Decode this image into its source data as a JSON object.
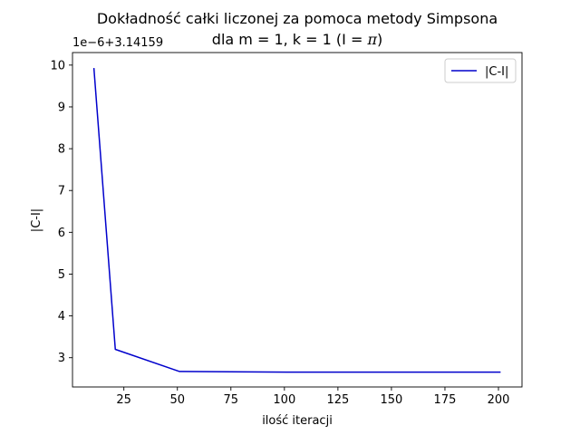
{
  "chart_data": {
    "type": "line",
    "title_line1": "Dokładność całki liczonej za pomoca metody Simpsona",
    "title_line2_prefix": "dla m = 1, k = 1 (I = ",
    "title_line2_symbol": "π",
    "title_line2_suffix": ")",
    "xlabel": "ilość iteracji",
    "ylabel": "|C-I|",
    "y_offset_text": "1e−6+3.14159",
    "y_offset_base": 3.14159,
    "y_offset_scale": 1e-06,
    "xlim": [
      1,
      211
    ],
    "ylim": [
      2.3,
      10.3
    ],
    "xticks": [
      25,
      50,
      75,
      100,
      125,
      150,
      175,
      200
    ],
    "xtick_labels": [
      "25",
      "50",
      "75",
      "100",
      "125",
      "150",
      "175",
      "200"
    ],
    "yticks": [
      3,
      4,
      5,
      6,
      7,
      8,
      9,
      10
    ],
    "ytick_labels": [
      "3",
      "4",
      "5",
      "6",
      "7",
      "8",
      "9",
      "10"
    ],
    "grid": false,
    "legend_position": "top-right",
    "series": [
      {
        "name": "|C-I|",
        "color": "#0000cc",
        "x": [
          11,
          21,
          51,
          101,
          201
        ],
        "y": [
          9.93,
          3.2,
          2.67,
          2.655,
          2.654
        ]
      }
    ]
  }
}
